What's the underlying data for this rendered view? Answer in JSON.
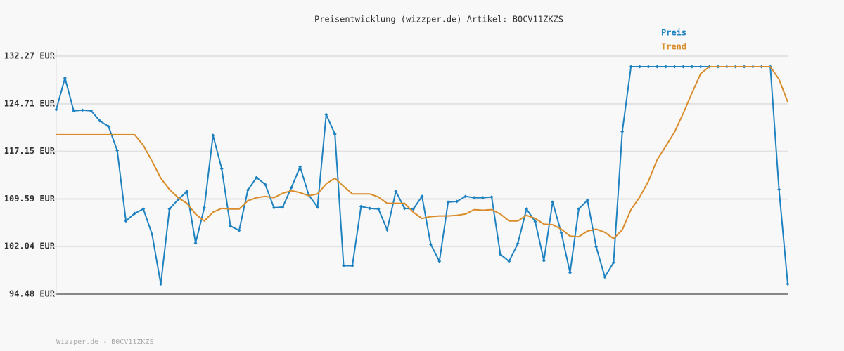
{
  "chart_data": {
    "type": "line",
    "title": "Preisentwicklung (wizzper.de) Artikel: B0CV11ZKZS",
    "footer": "Wizzper.de - B0CV11ZKZS",
    "ylim": [
      94.48,
      132.27
    ],
    "yticks": [
      {
        "value": 94.48,
        "label": "94.48 EUR"
      },
      {
        "value": 102.04,
        "label": "102.04 EUR"
      },
      {
        "value": 109.59,
        "label": "109.59 EUR"
      },
      {
        "value": 117.15,
        "label": "117.15 EUR"
      },
      {
        "value": 124.71,
        "label": "124.71 EUR"
      },
      {
        "value": 132.27,
        "label": "132.27 EUR"
      }
    ],
    "grid": true,
    "legend": "top-right",
    "series": [
      {
        "name": "Preis",
        "color": "#1f82c0",
        "markers": true,
        "values": [
          123.8,
          128.8,
          123.6,
          123.7,
          123.6,
          122.0,
          121.1,
          117.3,
          106.1,
          107.3,
          108.0,
          104.0,
          96.1,
          108.0,
          109.5,
          110.8,
          102.6,
          108.2,
          119.7,
          114.4,
          105.3,
          104.6,
          111.0,
          113.0,
          111.9,
          108.2,
          108.3,
          111.4,
          114.7,
          110.2,
          108.3,
          123.0,
          119.9,
          99.0,
          99.0,
          108.4,
          108.1,
          108.0,
          104.7,
          110.8,
          108.1,
          108.0,
          110.0,
          102.4,
          99.7,
          109.1,
          109.2,
          110.0,
          109.8,
          109.8,
          109.9,
          100.8,
          99.7,
          102.5,
          108.0,
          106.0,
          99.8,
          109.1,
          104.2,
          97.9,
          108.0,
          109.4,
          102.0,
          97.2,
          99.5,
          120.3,
          130.6,
          130.6,
          130.6,
          130.6,
          130.6,
          130.6,
          130.6,
          130.6,
          130.6,
          130.6,
          130.6,
          130.6,
          130.6,
          130.6,
          130.6,
          130.6,
          130.6,
          111.1,
          96.1
        ]
      },
      {
        "name": "Trend",
        "color": "#d98c2a",
        "markers": false,
        "values": [
          119.8,
          119.8,
          119.8,
          119.8,
          119.8,
          119.8,
          119.8,
          119.8,
          119.8,
          119.8,
          118.1,
          115.6,
          112.9,
          111.1,
          109.8,
          108.9,
          107.2,
          106.1,
          107.5,
          108.1,
          108.0,
          108.0,
          109.3,
          109.8,
          110.0,
          109.8,
          110.5,
          110.9,
          110.6,
          110.1,
          110.4,
          112.0,
          112.9,
          111.6,
          110.4,
          110.4,
          110.4,
          109.9,
          108.9,
          108.9,
          108.9,
          107.5,
          106.5,
          106.8,
          106.9,
          106.9,
          107.0,
          107.2,
          107.9,
          107.8,
          107.9,
          107.2,
          106.1,
          106.1,
          107.0,
          106.5,
          105.6,
          105.5,
          104.8,
          103.7,
          103.6,
          104.5,
          104.8,
          104.3,
          103.3,
          104.7,
          107.9,
          109.9,
          112.4,
          115.8,
          118.0,
          120.2,
          123.2,
          126.4,
          129.5,
          130.6,
          130.6,
          130.6,
          130.6,
          130.6,
          130.6,
          130.6,
          130.6,
          128.6,
          125.0
        ]
      }
    ]
  }
}
